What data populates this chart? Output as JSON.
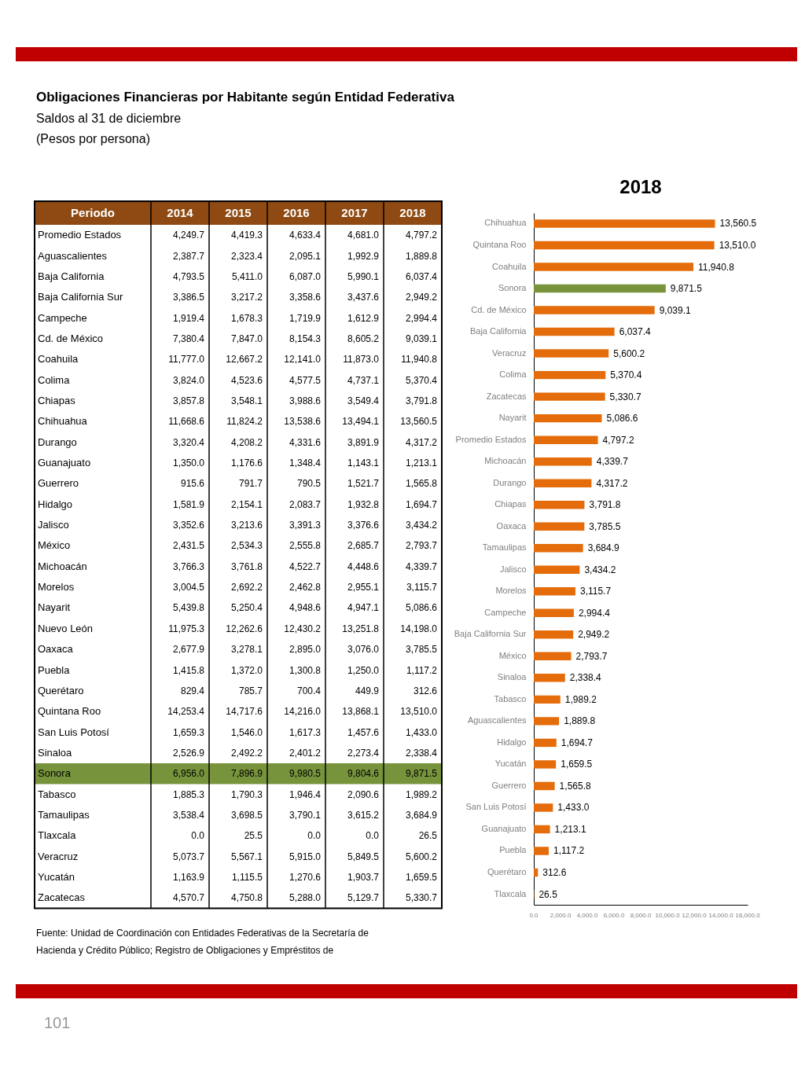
{
  "chart_data": [
    {
      "type": "heatmap",
      "title": "Obligaciones Financieras por Habitante según Entidad Federativa",
      "subtitle": "Saldos al 31 de diciembre",
      "ylabel": "Periodo",
      "categories": [
        "2014",
        "2015",
        "2016",
        "2017",
        "2018"
      ],
      "y_categories": [
        "Promedio Estados",
        "Aguascalientes",
        "Baja California",
        "Baja California Sur",
        "Campeche",
        "Cd. de México",
        "Coahuila",
        "Colima",
        "Chiapas",
        "Chihuahua",
        "Durango",
        "Guanajuato",
        "Guerrero",
        "Hidalgo",
        "Jalisco",
        "México",
        "Michoacán",
        "Morelos",
        "Nayarit",
        "Nuevo León",
        "Oaxaca",
        "Puebla",
        "Querétaro",
        "Quintana Roo",
        "San Luis Potosí",
        "Sinaloa",
        "Sonora",
        "Tabasco",
        "Tamaulipas",
        "Tlaxcala",
        "Veracruz",
        "Yucatán",
        "Zacatecas"
      ],
      "cells": [
        [
          4249.7,
          4419.3,
          4633.4,
          4681.0,
          4797.2
        ],
        [
          2387.7,
          2323.4,
          2095.1,
          1992.9,
          1889.8
        ],
        [
          4793.5,
          5411.0,
          6087.0,
          5990.1,
          6037.4
        ],
        [
          3386.5,
          3217.2,
          3358.6,
          3437.6,
          2949.2
        ],
        [
          1919.4,
          1678.3,
          1719.9,
          1612.9,
          2994.4
        ],
        [
          7380.4,
          7847.0,
          8154.3,
          8605.2,
          9039.1
        ],
        [
          11777.0,
          12667.2,
          12141.0,
          11873.0,
          11940.8
        ],
        [
          3824.0,
          4523.6,
          4577.5,
          4737.1,
          5370.4
        ],
        [
          3857.8,
          3548.1,
          3988.6,
          3549.4,
          3791.8
        ],
        [
          11668.6,
          11824.2,
          13538.6,
          13494.1,
          13560.5
        ],
        [
          3320.4,
          4208.2,
          4331.6,
          3891.9,
          4317.2
        ],
        [
          1350.0,
          1176.6,
          1348.4,
          1143.1,
          1213.1
        ],
        [
          915.6,
          791.7,
          790.5,
          1521.7,
          1565.8
        ],
        [
          1581.9,
          2154.1,
          2083.7,
          1932.8,
          1694.7
        ],
        [
          3352.6,
          3213.6,
          3391.3,
          3376.6,
          3434.2
        ],
        [
          2431.5,
          2534.3,
          2555.8,
          2685.7,
          2793.7
        ],
        [
          3766.3,
          3761.8,
          4522.7,
          4448.6,
          4339.7
        ],
        [
          3004.5,
          2692.2,
          2462.8,
          2955.1,
          3115.7
        ],
        [
          5439.8,
          5250.4,
          4948.6,
          4947.1,
          5086.6
        ],
        [
          11975.3,
          12262.6,
          12430.2,
          13251.8,
          14198.0
        ],
        [
          2677.9,
          3278.1,
          2895.0,
          3076.0,
          3785.5
        ],
        [
          1415.8,
          1372.0,
          1300.8,
          1250.0,
          1117.2
        ],
        [
          829.4,
          785.7,
          700.4,
          449.9,
          312.6
        ],
        [
          14253.4,
          14717.6,
          14216.0,
          13868.1,
          13510.0
        ],
        [
          1659.3,
          1546.0,
          1617.3,
          1457.6,
          1433.0
        ],
        [
          2526.9,
          2492.2,
          2401.2,
          2273.4,
          2338.4
        ],
        [
          6956.0,
          7896.9,
          9980.5,
          9804.6,
          9871.5
        ],
        [
          1885.3,
          1790.3,
          1946.4,
          2090.6,
          1989.2
        ],
        [
          3538.4,
          3698.5,
          3790.1,
          3615.2,
          3684.9
        ],
        [
          0.0,
          25.5,
          0.0,
          0.0,
          26.5
        ],
        [
          5073.7,
          5567.1,
          5915.0,
          5849.5,
          5600.2
        ],
        [
          1163.9,
          1115.5,
          1270.6,
          1903.7,
          1659.5
        ],
        [
          4570.7,
          4750.8,
          5288.0,
          5129.7,
          5330.7
        ]
      ],
      "cell_labels": [
        [
          "4,249.7",
          "4,419.3",
          "4,633.4",
          "4,681.0",
          "4,797.2"
        ],
        [
          "2,387.7",
          "2,323.4",
          "2,095.1",
          "1,992.9",
          "1,889.8"
        ],
        [
          "4,793.5",
          "5,411.0",
          "6,087.0",
          "5,990.1",
          "6,037.4"
        ],
        [
          "3,386.5",
          "3,217.2",
          "3,358.6",
          "3,437.6",
          "2,949.2"
        ],
        [
          "1,919.4",
          "1,678.3",
          "1,719.9",
          "1,612.9",
          "2,994.4"
        ],
        [
          "7,380.4",
          "7,847.0",
          "8,154.3",
          "8,605.2",
          "9,039.1"
        ],
        [
          "11,777.0",
          "12,667.2",
          "12,141.0",
          "11,873.0",
          "11,940.8"
        ],
        [
          "3,824.0",
          "4,523.6",
          "4,577.5",
          "4,737.1",
          "5,370.4"
        ],
        [
          "3,857.8",
          "3,548.1",
          "3,988.6",
          "3,549.4",
          "3,791.8"
        ],
        [
          "11,668.6",
          "11,824.2",
          "13,538.6",
          "13,494.1",
          "13,560.5"
        ],
        [
          "3,320.4",
          "4,208.2",
          "4,331.6",
          "3,891.9",
          "4,317.2"
        ],
        [
          "1,350.0",
          "1,176.6",
          "1,348.4",
          "1,143.1",
          "1,213.1"
        ],
        [
          "915.6",
          "791.7",
          "790.5",
          "1,521.7",
          "1,565.8"
        ],
        [
          "1,581.9",
          "2,154.1",
          "2,083.7",
          "1,932.8",
          "1,694.7"
        ],
        [
          "3,352.6",
          "3,213.6",
          "3,391.3",
          "3,376.6",
          "3,434.2"
        ],
        [
          "2,431.5",
          "2,534.3",
          "2,555.8",
          "2,685.7",
          "2,793.7"
        ],
        [
          "3,766.3",
          "3,761.8",
          "4,522.7",
          "4,448.6",
          "4,339.7"
        ],
        [
          "3,004.5",
          "2,692.2",
          "2,462.8",
          "2,955.1",
          "3,115.7"
        ],
        [
          "5,439.8",
          "5,250.4",
          "4,948.6",
          "4,947.1",
          "5,086.6"
        ],
        [
          "11,975.3",
          "12,262.6",
          "12,430.2",
          "13,251.8",
          "14,198.0"
        ],
        [
          "2,677.9",
          "3,278.1",
          "2,895.0",
          "3,076.0",
          "3,785.5"
        ],
        [
          "1,415.8",
          "1,372.0",
          "1,300.8",
          "1,250.0",
          "1,117.2"
        ],
        [
          "829.4",
          "785.7",
          "700.4",
          "449.9",
          "312.6"
        ],
        [
          "14,253.4",
          "14,717.6",
          "14,216.0",
          "13,868.1",
          "13,510.0"
        ],
        [
          "1,659.3",
          "1,546.0",
          "1,617.3",
          "1,457.6",
          "1,433.0"
        ],
        [
          "2,526.9",
          "2,492.2",
          "2,401.2",
          "2,273.4",
          "2,338.4"
        ],
        [
          "6,956.0",
          "7,896.9",
          "9,980.5",
          "9,804.6",
          "9,871.5"
        ],
        [
          "1,885.3",
          "1,790.3",
          "1,946.4",
          "2,090.6",
          "1,989.2"
        ],
        [
          "3,538.4",
          "3,698.5",
          "3,790.1",
          "3,615.2",
          "3,684.9"
        ],
        [
          "0.0",
          "25.5",
          "0.0",
          "0.0",
          "26.5"
        ],
        [
          "5,073.7",
          "5,567.1",
          "5,915.0",
          "5,849.5",
          "5,600.2"
        ],
        [
          "1,163.9",
          "1,115.5",
          "1,270.6",
          "1,903.7",
          "1,659.5"
        ],
        [
          "4,570.7",
          "4,750.8",
          "5,288.0",
          "5,129.7",
          "5,330.7"
        ]
      ],
      "bands": [
        {
          "axis": "y",
          "from": "Sonora",
          "to": "Sonora",
          "color": "#77933c"
        }
      ],
      "annotations": [
        "(Pesos por persona)",
        "Fuente: Unidad de Coordinación con Entidades Federativas de la Secretaría de Hacienda y Crédito Público; Registro de Obligaciones y Empréstitos de",
        "101"
      ]
    },
    {
      "type": "bar",
      "orientation": "horizontal",
      "title": "2018",
      "categories": [
        "Chihuahua",
        "Quintana Roo",
        "Coahuila",
        "Sonora",
        "Cd. de México",
        "Baja California",
        "Veracruz",
        "Colima",
        "Zacatecas",
        "Nayarit",
        "Promedio Estados",
        "Michoacán",
        "Durango",
        "Chiapas",
        "Oaxaca",
        "Tamaulipas",
        "Jalisco",
        "Morelos",
        "Campeche",
        "Baja California Sur",
        "México",
        "Sinaloa",
        "Tabasco",
        "Aguascalientes",
        "Hidalgo",
        "Yucatán",
        "Guerrero",
        "San Luis Potosí",
        "Guanajuato",
        "Puebla",
        "Querétaro",
        "Tlaxcala"
      ],
      "values": [
        13560.5,
        13510.0,
        11940.8,
        9871.5,
        9039.1,
        6037.4,
        5600.2,
        5370.4,
        5330.7,
        5086.6,
        4797.2,
        4339.7,
        4317.2,
        3791.8,
        3785.5,
        3684.9,
        3434.2,
        3115.7,
        2994.4,
        2949.2,
        2793.7,
        2338.4,
        1989.2,
        1889.8,
        1694.7,
        1659.5,
        1565.8,
        1433.0,
        1213.1,
        1117.2,
        312.6,
        26.5
      ],
      "value_labels": [
        "13,560.5",
        "13,510.0",
        "11,940.8",
        "9,871.5",
        "9,039.1",
        "6,037.4",
        "5,600.2",
        "5,370.4",
        "5,330.7",
        "5,086.6",
        "4,797.2",
        "4,339.7",
        "4,317.2",
        "3,791.8",
        "3,785.5",
        "3,684.9",
        "3,434.2",
        "3,115.7",
        "2,994.4",
        "2,949.2",
        "2,793.7",
        "2,338.4",
        "1,989.2",
        "1,889.8",
        "1,694.7",
        "1,659.5",
        "1,565.8",
        "1,433.0",
        "1,213.1",
        "1,117.2",
        "312.6",
        "26.5"
      ],
      "colors": [
        "#e46c0a",
        "#e46c0a",
        "#e46c0a",
        "#77933c",
        "#e46c0a",
        "#e46c0a",
        "#e46c0a",
        "#e46c0a",
        "#e46c0a",
        "#e46c0a",
        "#e46c0a",
        "#e46c0a",
        "#e46c0a",
        "#e46c0a",
        "#e46c0a",
        "#e46c0a",
        "#e46c0a",
        "#e46c0a",
        "#e46c0a",
        "#e46c0a",
        "#e46c0a",
        "#e46c0a",
        "#e46c0a",
        "#e46c0a",
        "#e46c0a",
        "#e46c0a",
        "#e46c0a",
        "#e46c0a",
        "#e46c0a",
        "#e46c0a",
        "#e46c0a",
        "#e46c0a"
      ],
      "xlim": [
        0,
        16000
      ],
      "xticks": [
        {
          "value": 0,
          "label": "0.0"
        },
        {
          "value": 2000,
          "label": "2,000.0"
        },
        {
          "value": 4000,
          "label": "4,000.0"
        },
        {
          "value": 6000,
          "label": "6,000.0"
        },
        {
          "value": 8000,
          "label": "8,000.0"
        },
        {
          "value": 10000,
          "label": "10,000.0"
        },
        {
          "value": 12000,
          "label": "12,000.0"
        },
        {
          "value": 14000,
          "label": "14,000.0"
        },
        {
          "value": 16000,
          "label": "16,000.0"
        }
      ]
    }
  ]
}
